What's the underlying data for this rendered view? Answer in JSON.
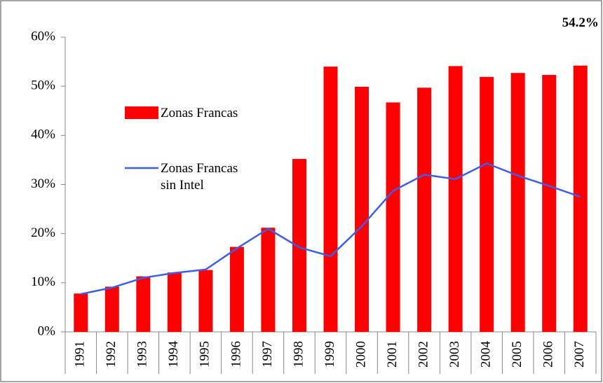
{
  "chart_data": {
    "type": "bar_line",
    "categories": [
      "1991",
      "1992",
      "1993",
      "1994",
      "1995",
      "1996",
      "1997",
      "1998",
      "1999",
      "2000",
      "2001",
      "2002",
      "2003",
      "2004",
      "2005",
      "2006",
      "2007"
    ],
    "series": [
      {
        "name": "Zonas Francas",
        "type": "bar",
        "color": "#ff0000",
        "values": [
          7.8,
          9.2,
          11.3,
          12.1,
          12.6,
          17.3,
          21.2,
          35.2,
          54.0,
          49.9,
          46.7,
          49.7,
          54.1,
          51.9,
          52.7,
          52.3,
          54.2
        ],
        "value_labels": [
          null,
          null,
          null,
          null,
          null,
          null,
          null,
          null,
          null,
          null,
          null,
          null,
          null,
          null,
          null,
          null,
          "54.2%"
        ]
      },
      {
        "name": "Zonas Francas sin Intel",
        "type": "line",
        "color": "#3a5ff0",
        "values": [
          7.7,
          9.0,
          11.0,
          12.0,
          12.7,
          17.0,
          21.0,
          17.2,
          15.4,
          21.5,
          28.7,
          32.0,
          31.1,
          34.3,
          31.8,
          29.7,
          27.5
        ]
      }
    ],
    "ylim": [
      0,
      60
    ],
    "yticks": [
      {
        "value": 0,
        "label": "0%"
      },
      {
        "value": 10,
        "label": "10%"
      },
      {
        "value": 20,
        "label": "20%"
      },
      {
        "value": 30,
        "label": "30%"
      },
      {
        "value": 40,
        "label": "40%"
      },
      {
        "value": 50,
        "label": "50%"
      },
      {
        "value": 60,
        "label": "60%"
      }
    ],
    "grid": false
  }
}
